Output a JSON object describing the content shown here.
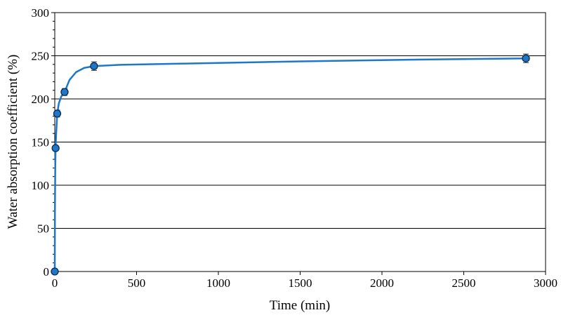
{
  "chart_data": {
    "type": "scatter",
    "title": "",
    "xlabel": "Time (min)",
    "ylabel": "Water absorption coefficient (%)",
    "xlim": [
      0,
      3000
    ],
    "ylim": [
      0,
      300
    ],
    "xticks": [
      0,
      500,
      1000,
      1500,
      2000,
      2500,
      3000
    ],
    "yticks": [
      0,
      50,
      100,
      150,
      200,
      250,
      300
    ],
    "grid": "horizontal",
    "legend": "none",
    "marker_color": "#1f77c9",
    "line_color": "#1f77c9",
    "series": [
      {
        "x": [
          0,
          5,
          15,
          60,
          240,
          2880
        ],
        "y": [
          0,
          143,
          183,
          208,
          238,
          247
        ],
        "error": [
          0,
          2,
          4,
          4,
          5,
          5
        ]
      }
    ],
    "fit_curve": {
      "x": [
        0,
        1,
        3,
        5,
        8,
        15,
        25,
        40,
        60,
        90,
        130,
        180,
        240,
        400,
        800,
        1500,
        2200,
        2880
      ],
      "y": [
        0,
        70,
        120,
        143,
        158,
        183,
        195,
        203,
        208,
        222,
        231,
        236,
        238,
        239.5,
        241,
        243.5,
        245.5,
        247
      ]
    }
  }
}
